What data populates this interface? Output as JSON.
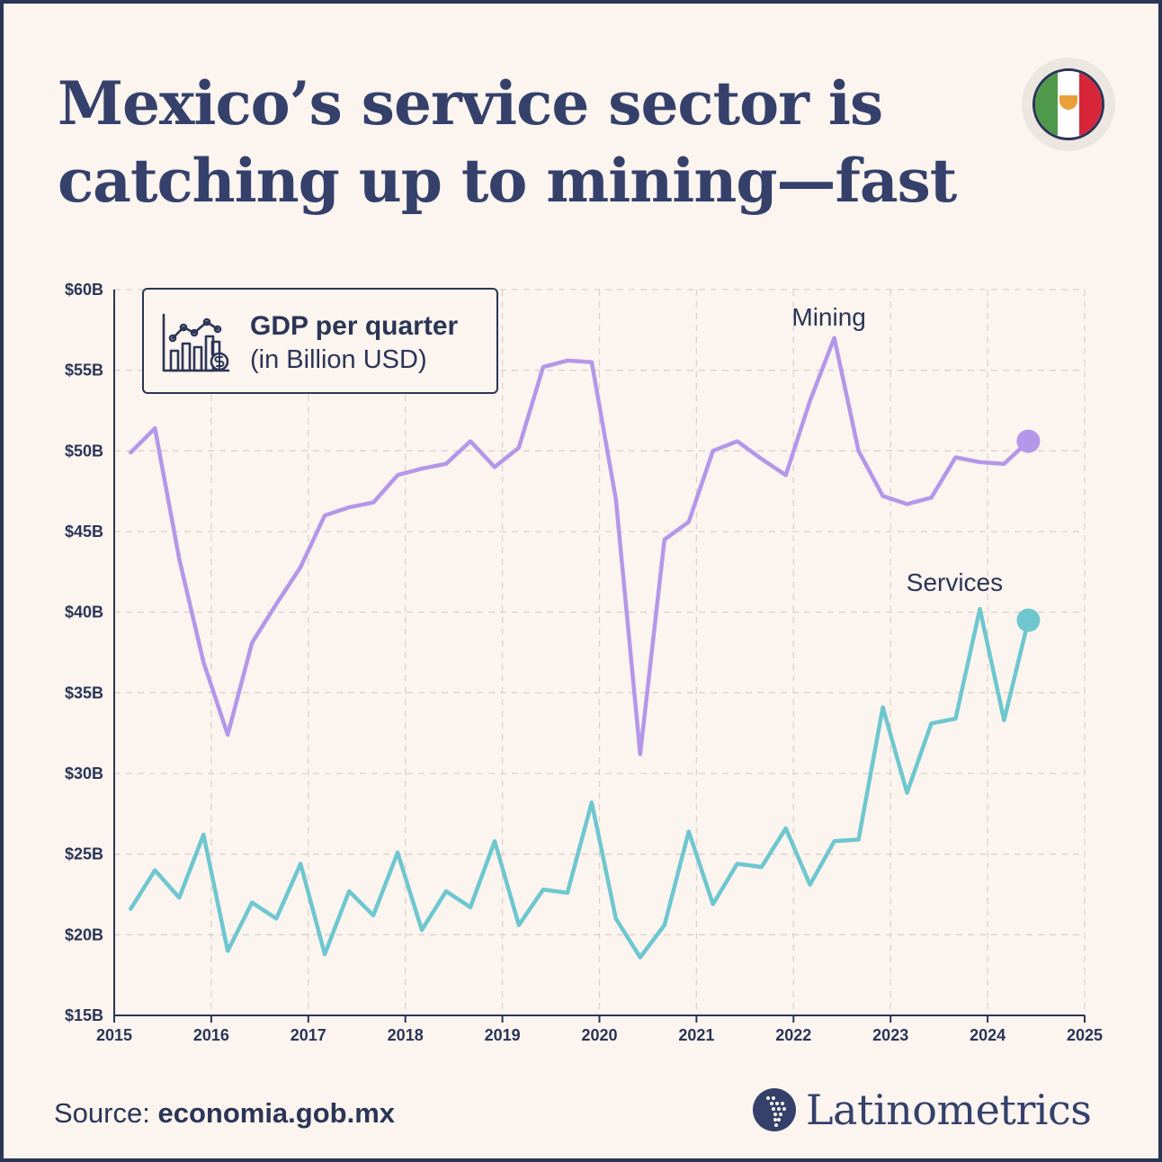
{
  "header": {
    "title": "Mexico’s service sector is catching up to mining—fast"
  },
  "legend": {
    "title": "GDP per quarter",
    "subtitle": "(in Billion USD)",
    "icon": "chart-dollar-icon"
  },
  "footer": {
    "source_prefix": "Source:",
    "source_value": "economia.gob.mx",
    "brand": "Latinometrics",
    "brand_icon": "latin-america-map-icon"
  },
  "flag": {
    "icon": "mexico-flag-icon",
    "colors": [
      "#4f9a4a",
      "#ffffff",
      "#d8253a"
    ]
  },
  "colors": {
    "mining": "#b497e8",
    "services": "#6ec7cf",
    "text": "#2b3556",
    "grid": "#ddd2cc",
    "background": "#fbf4ef"
  },
  "chart_data": {
    "type": "line",
    "title": "GDP per quarter",
    "subtitle": "(in Billion USD)",
    "x_ticks": [
      2015,
      2016,
      2017,
      2018,
      2019,
      2020,
      2021,
      2022,
      2023,
      2024,
      2025
    ],
    "y_ticks": [
      "$15B",
      "$20B",
      "$25B",
      "$30B",
      "$35B",
      "$40B",
      "$45B",
      "$50B",
      "$55B",
      "$60B"
    ],
    "y_tick_values": [
      15,
      20,
      25,
      30,
      35,
      40,
      45,
      50,
      55,
      60
    ],
    "xlim": [
      2015,
      2025
    ],
    "ylim": [
      15,
      60
    ],
    "grid": true,
    "x": [
      2015.17,
      2015.42,
      2015.67,
      2015.92,
      2016.17,
      2016.42,
      2016.67,
      2016.92,
      2017.17,
      2017.42,
      2017.67,
      2017.92,
      2018.17,
      2018.42,
      2018.67,
      2018.92,
      2019.17,
      2019.42,
      2019.67,
      2019.92,
      2020.17,
      2020.42,
      2020.67,
      2020.92,
      2021.17,
      2021.42,
      2021.67,
      2021.92,
      2022.17,
      2022.42,
      2022.67,
      2022.92,
      2023.17,
      2023.42,
      2023.67,
      2023.92,
      2024.17,
      2024.42
    ],
    "series": [
      {
        "name": "Mining",
        "values": [
          49.9,
          51.4,
          43.3,
          36.9,
          32.4,
          38.1,
          40.5,
          42.8,
          46.0,
          46.5,
          46.8,
          48.5,
          48.9,
          49.2,
          50.6,
          49.0,
          50.2,
          55.2,
          55.6,
          55.5,
          47.0,
          31.2,
          44.5,
          45.6,
          50.0,
          50.6,
          49.5,
          48.5,
          53.1,
          57.0,
          50.0,
          47.2,
          46.7,
          47.1,
          49.6,
          49.3,
          49.2,
          50.6
        ]
      },
      {
        "name": "Services",
        "values": [
          21.6,
          24.0,
          22.3,
          26.2,
          19.0,
          22.0,
          21.0,
          24.4,
          18.8,
          22.7,
          21.2,
          25.1,
          20.3,
          22.7,
          21.7,
          25.8,
          20.6,
          22.8,
          22.6,
          28.2,
          21.0,
          18.6,
          20.6,
          26.4,
          21.9,
          24.4,
          24.2,
          26.6,
          23.1,
          25.8,
          25.9,
          34.1,
          28.8,
          33.1,
          33.4,
          40.2,
          33.3,
          39.5
        ]
      }
    ]
  }
}
